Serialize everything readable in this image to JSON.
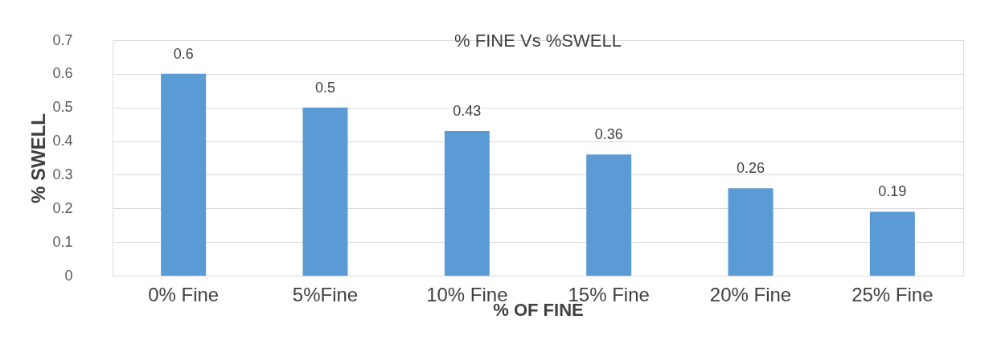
{
  "chart_data": {
    "type": "bar",
    "title": "% FINE Vs %SWELL",
    "xlabel": "% OF FINE",
    "ylabel": "% SWELL",
    "categories": [
      "0% Fine",
      "5%Fine",
      "10% Fine",
      "15% Fine",
      "20% Fine",
      "25% Fine"
    ],
    "values": [
      0.6,
      0.5,
      0.43,
      0.36,
      0.26,
      0.19
    ],
    "color": "#5b9bd5",
    "ylim": [
      0,
      0.7
    ],
    "yticks": [
      0,
      0.1,
      0.2,
      0.3,
      0.4,
      0.5,
      0.6,
      0.7
    ],
    "grid": "y",
    "data_labels": true
  }
}
